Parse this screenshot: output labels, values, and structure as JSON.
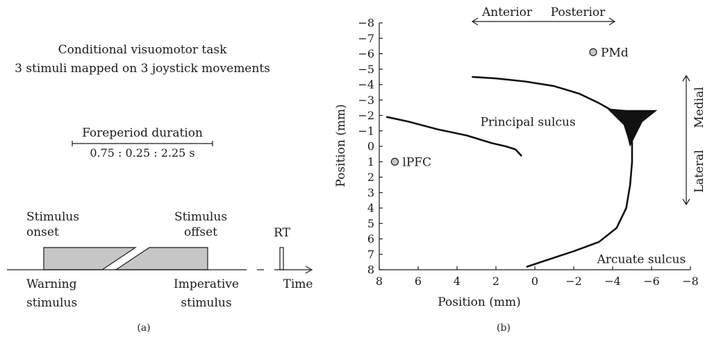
{
  "panel_a": {
    "title_line1": "Conditional visuomotor task",
    "title_line2": "3 stimuli mapped on 3 joystick movements",
    "foreperiod_label": "Foreperiod duration",
    "foreperiod_values": "0.75 : 0.25 : 2.25 s",
    "stimulus_onset_line1": "Stimulus",
    "stimulus_onset_line2": "onset",
    "stimulus_offset_line1": "Stimulus",
    "stimulus_offset_line2": "offset",
    "rt_label": "RT",
    "warning_line1": "Warning",
    "warning_line2": "stimulus",
    "imperative_line1": "Imperative",
    "imperative_line2": "stimulus",
    "time_label": "Time",
    "caption": "(a)"
  },
  "panel_b": {
    "anterior_label": "Anterior",
    "posterior_label": "Posterior",
    "medial_label": "Medial",
    "lateral_label": "Lateral",
    "principal_sulcus_label": "Principal sulcus",
    "arcuate_sulcus_label": "Arcuate sulcus",
    "pmd_label": "PMd",
    "lpfc_label": "lPFC",
    "x_axis_label": "Position (mm)",
    "y_axis_label": "Position (mm)",
    "caption": "(b)",
    "x_ticks": [
      "8",
      "6",
      "4",
      "2",
      "0",
      "−2",
      "−4",
      "−6",
      "−8"
    ],
    "y_ticks": [
      "−8",
      "−7",
      "−6",
      "−5",
      "−4",
      "−3",
      "−2",
      "−1",
      "0",
      "1",
      "2",
      "3",
      "4",
      "5",
      "6",
      "7",
      "8"
    ],
    "x_range": [
      8,
      -8
    ],
    "y_range": [
      -8,
      8
    ],
    "recording_sites": [
      {
        "name": "PMd",
        "x": -3.0,
        "y": -6.1
      },
      {
        "name": "lPFC",
        "x": 7.2,
        "y": 1.0
      }
    ],
    "principal_sulcus_path": [
      [
        7.6,
        -1.9
      ],
      [
        6.5,
        -1.6
      ],
      [
        5.0,
        -1.1
      ],
      [
        3.5,
        -0.7
      ],
      [
        2.2,
        -0.2
      ],
      [
        1.5,
        0.0
      ],
      [
        1.0,
        0.2
      ],
      [
        0.7,
        0.6
      ]
    ],
    "arcuate_sulcus_path": [
      [
        3.2,
        -4.5
      ],
      [
        2.0,
        -4.4
      ],
      [
        0.5,
        -4.2
      ],
      [
        -1.0,
        -3.9
      ],
      [
        -2.3,
        -3.4
      ],
      [
        -3.3,
        -2.8
      ],
      [
        -4.0,
        -2.3
      ],
      [
        -4.6,
        -1.6
      ],
      [
        -4.9,
        -1.0
      ],
      [
        -5.0,
        -0.3
      ],
      [
        -5.0,
        1.0
      ],
      [
        -4.9,
        2.5
      ],
      [
        -4.7,
        4.0
      ],
      [
        -4.2,
        5.3
      ],
      [
        -3.3,
        6.2
      ],
      [
        -2.0,
        6.8
      ],
      [
        -0.8,
        7.3
      ],
      [
        0.4,
        7.8
      ]
    ],
    "arcuate_spur_region": [
      [
        -3.8,
        -2.4
      ],
      [
        -4.7,
        -2.3
      ],
      [
        -6.2,
        -2.3
      ],
      [
        -5.5,
        -1.6
      ],
      [
        -5.1,
        -0.6
      ],
      [
        -4.9,
        -0.1
      ],
      [
        -4.8,
        -0.6
      ],
      [
        -4.6,
        -1.4
      ]
    ],
    "principal_sulcus_label_pos": [
      2.8,
      -1.6
    ],
    "arcuate_sulcus_label_pos": [
      -3.2,
      7.3
    ],
    "colors": {
      "site_fill": "#c8c8c8",
      "sulcus": "#111111",
      "bar_fill": "#c6c6c6"
    }
  }
}
